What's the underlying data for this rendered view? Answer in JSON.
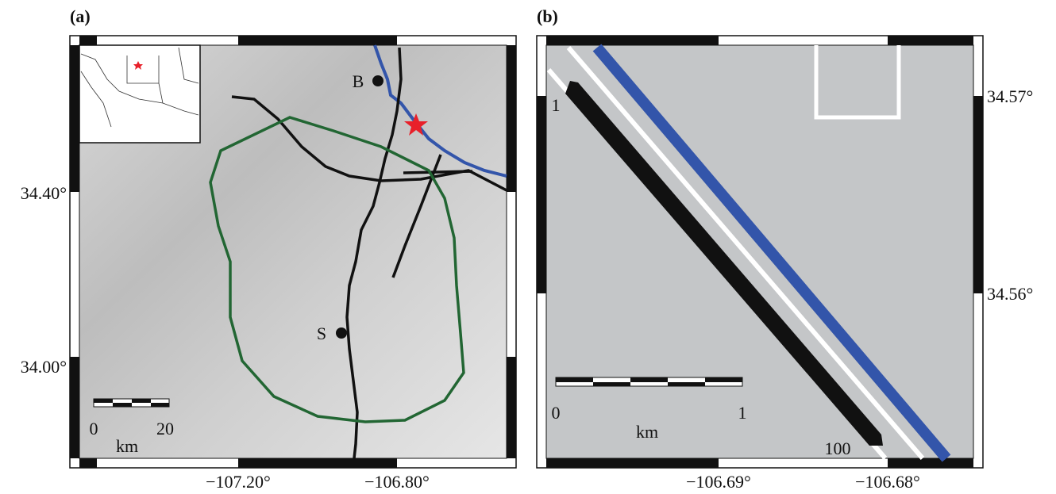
{
  "panels": [
    {
      "label": "(a)",
      "y_ticks": [
        "34.40°",
        "34.00°"
      ],
      "x_ticks": [
        "−107.20°",
        "−106.80°"
      ],
      "markers": [
        "B",
        "S"
      ],
      "scale_bar": {
        "start": "0",
        "end": "20",
        "unit": "km"
      }
    },
    {
      "label": "(b)",
      "y_ticks": [
        "34.57°",
        "34.56°"
      ],
      "x_ticks": [
        "−106.69°",
        "−106.68°"
      ],
      "markers": [
        "1",
        "100"
      ],
      "scale_bar": {
        "start": "0",
        "end": "1",
        "unit": "km"
      }
    }
  ]
}
